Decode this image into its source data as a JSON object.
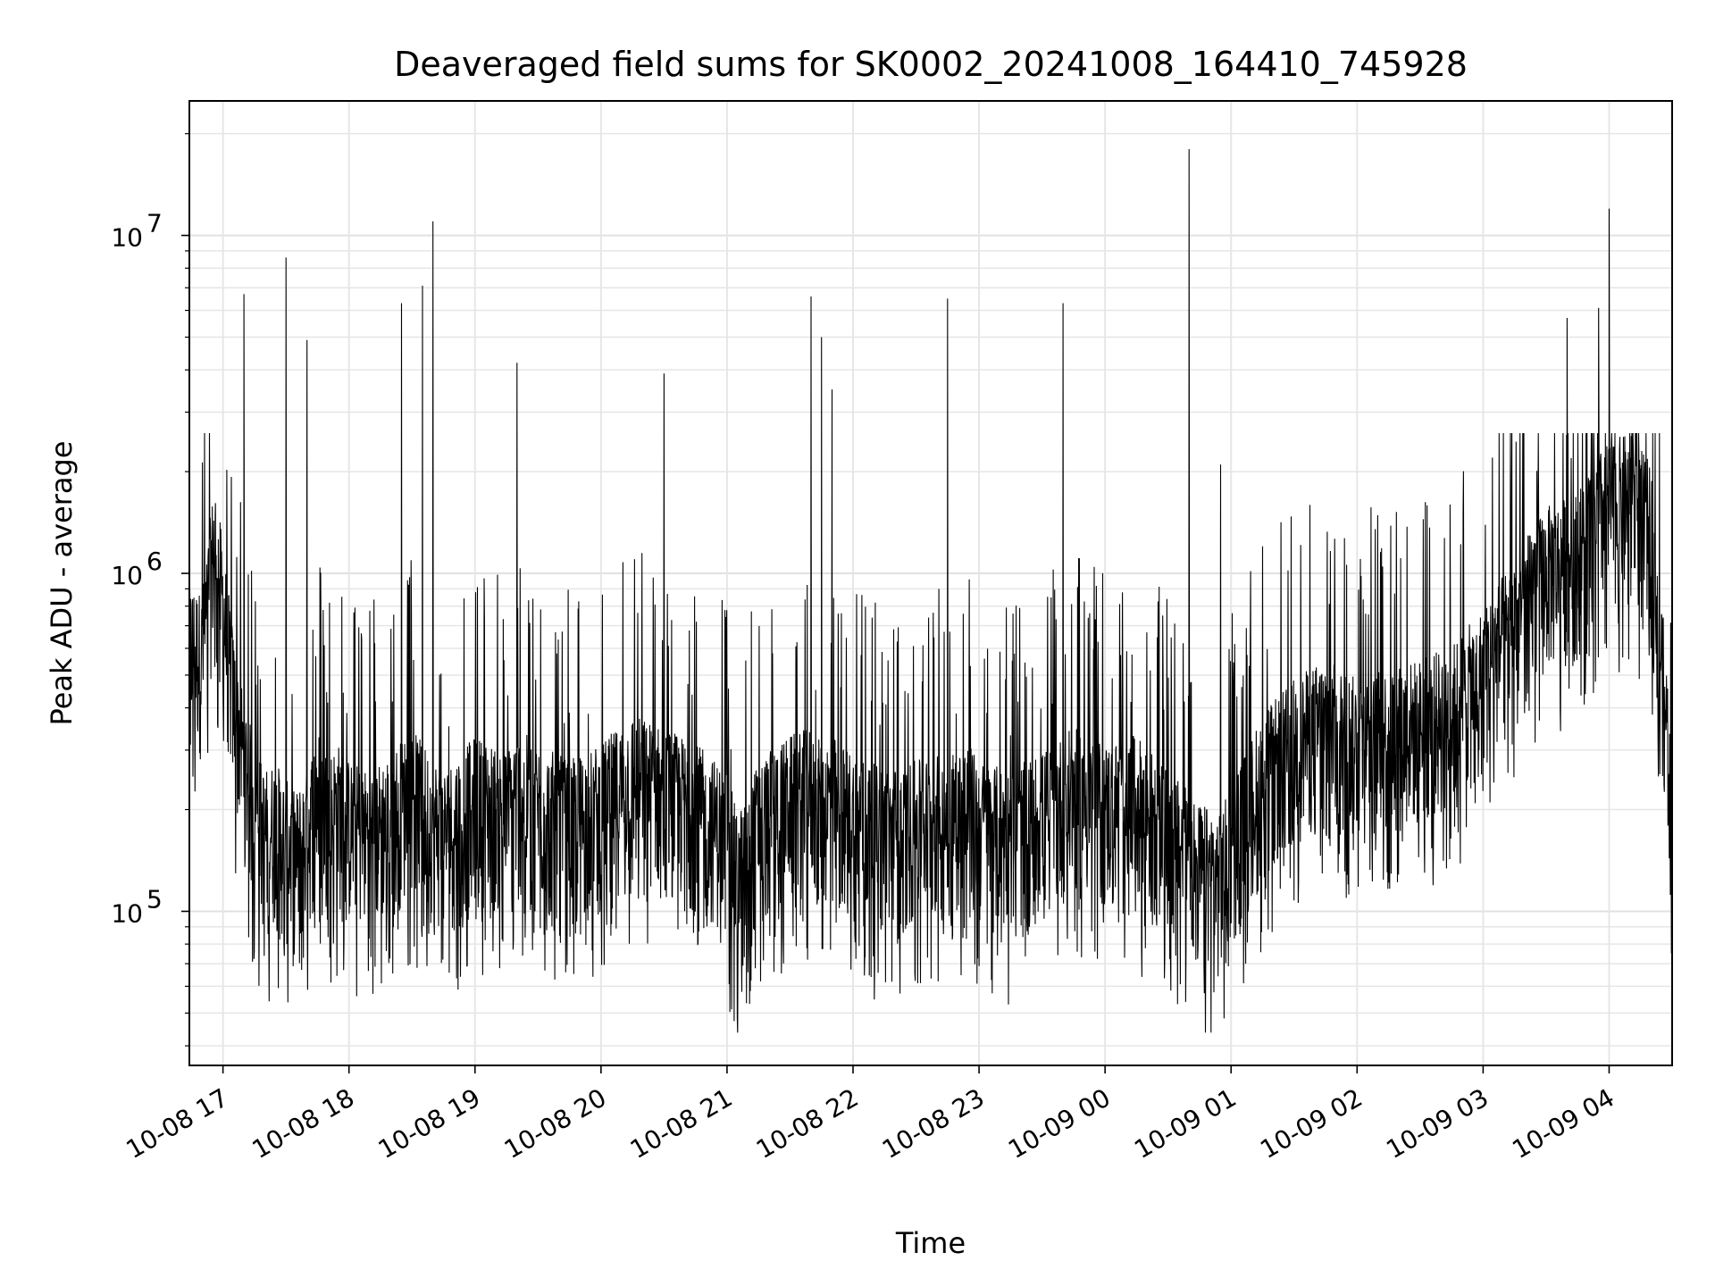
{
  "chart_data": {
    "type": "line",
    "title": "Deaveraged field sums for SK0002_20241008_164410_745928",
    "xlabel": "Time",
    "ylabel": "Peak ADU - average",
    "yscale": "log",
    "ylim": [
      35000,
      25000000
    ],
    "xlim": [
      "2024-10-08 16:44",
      "2024-10-09 04:30"
    ],
    "grid": true,
    "line_color": "#000000",
    "x_ticks": [
      {
        "label": "10-08 17",
        "value": "2024-10-08 17:00"
      },
      {
        "label": "10-08 18",
        "value": "2024-10-08 18:00"
      },
      {
        "label": "10-08 19",
        "value": "2024-10-08 19:00"
      },
      {
        "label": "10-08 20",
        "value": "2024-10-08 20:00"
      },
      {
        "label": "10-08 21",
        "value": "2024-10-08 21:00"
      },
      {
        "label": "10-08 22",
        "value": "2024-10-08 22:00"
      },
      {
        "label": "10-08 23",
        "value": "2024-10-08 23:00"
      },
      {
        "label": "10-09 00",
        "value": "2024-10-09 00:00"
      },
      {
        "label": "10-09 01",
        "value": "2024-10-09 01:00"
      },
      {
        "label": "10-09 02",
        "value": "2024-10-09 02:00"
      },
      {
        "label": "10-09 03",
        "value": "2024-10-09 03:00"
      },
      {
        "label": "10-09 04",
        "value": "2024-10-09 04:00"
      }
    ],
    "y_ticks": [
      {
        "base": "10",
        "exp": "5",
        "value": 100000
      },
      {
        "base": "10",
        "exp": "6",
        "value": 1000000
      },
      {
        "base": "10",
        "exp": "7",
        "value": 10000000
      }
    ],
    "series": [
      {
        "x": [
          "2024-10-08 16:44",
          "2024-10-08 16:50",
          "2024-10-08 16:56",
          "2024-10-08 17:00",
          "2024-10-08 17:05",
          "2024-10-08 17:10",
          "2024-10-08 17:15",
          "2024-10-08 17:20",
          "2024-10-08 17:25",
          "2024-10-08 17:30",
          "2024-10-08 17:35",
          "2024-10-08 17:40",
          "2024-10-08 17:45",
          "2024-10-08 17:50",
          "2024-10-08 17:55",
          "2024-10-08 18:00",
          "2024-10-08 18:10",
          "2024-10-08 18:15",
          "2024-10-08 18:20",
          "2024-10-08 18:30",
          "2024-10-08 18:35",
          "2024-10-08 18:45",
          "2024-10-08 19:00",
          "2024-10-08 19:15",
          "2024-10-08 19:20",
          "2024-10-08 19:30",
          "2024-10-08 19:45",
          "2024-10-08 20:00",
          "2024-10-08 20:15",
          "2024-10-08 20:30",
          "2024-10-08 20:45",
          "2024-10-08 21:00",
          "2024-10-08 21:05",
          "2024-10-08 21:15",
          "2024-10-08 21:30",
          "2024-10-08 21:40",
          "2024-10-08 21:45",
          "2024-10-08 21:50",
          "2024-10-08 22:00",
          "2024-10-08 22:15",
          "2024-10-08 22:30",
          "2024-10-08 22:45",
          "2024-10-08 22:55",
          "2024-10-08 23:00",
          "2024-10-08 23:15",
          "2024-10-08 23:30",
          "2024-10-08 23:45",
          "2024-10-09 00:00",
          "2024-10-09 00:15",
          "2024-10-09 00:30",
          "2024-10-09 00:40",
          "2024-10-09 00:45",
          "2024-10-09 00:55",
          "2024-10-09 01:00",
          "2024-10-09 01:15",
          "2024-10-09 01:30",
          "2024-10-09 01:45",
          "2024-10-09 02:00",
          "2024-10-09 02:15",
          "2024-10-09 02:30",
          "2024-10-09 02:45",
          "2024-10-09 03:00",
          "2024-10-09 03:15",
          "2024-10-09 03:30",
          "2024-10-09 03:45",
          "2024-10-09 03:55",
          "2024-10-09 04:00",
          "2024-10-09 04:10",
          "2024-10-09 04:20",
          "2024-10-09 04:30"
        ],
        "y": [
          550000,
          500000,
          1100000,
          700000,
          380000,
          250000,
          180000,
          150000,
          160000,
          140000,
          130000,
          150000,
          200000,
          170000,
          180000,
          160000,
          150000,
          160000,
          170000,
          200000,
          180000,
          150000,
          190000,
          170000,
          200000,
          180000,
          160000,
          180000,
          220000,
          200000,
          180000,
          150000,
          110000,
          160000,
          190000,
          200000,
          180000,
          190000,
          170000,
          150000,
          160000,
          170000,
          180000,
          160000,
          150000,
          170000,
          200000,
          180000,
          190000,
          150000,
          130000,
          120000,
          110000,
          140000,
          220000,
          280000,
          320000,
          280000,
          300000,
          320000,
          350000,
          450000,
          650000,
          900000,
          1000000,
          1300000,
          1400000,
          1500000,
          1200000,
          200000
        ],
        "peak_times": [
          "2024-10-08 17:10",
          "2024-10-08 17:30",
          "2024-10-08 17:40",
          "2024-10-08 18:25",
          "2024-10-08 18:35",
          "2024-10-08 18:40",
          "2024-10-08 19:20",
          "2024-10-08 20:30",
          "2024-10-08 21:40",
          "2024-10-08 21:45",
          "2024-10-08 21:50",
          "2024-10-08 22:45",
          "2024-10-08 23:40",
          "2024-10-09 00:40",
          "2024-10-09 00:55",
          "2024-10-09 03:40",
          "2024-10-09 03:55",
          "2024-10-09 04:00"
        ],
        "peak_values": [
          6700000,
          8600000,
          4900000,
          6300000,
          7100000,
          11000000,
          4200000,
          3900000,
          6600000,
          5000000,
          3500000,
          6500000,
          6300000,
          18000000,
          2100000,
          5700000,
          6100000,
          12000000
        ]
      }
    ]
  }
}
